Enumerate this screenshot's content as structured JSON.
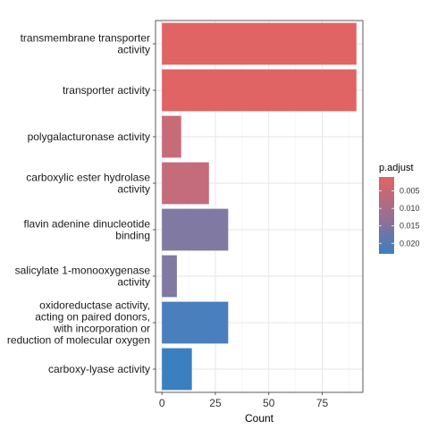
{
  "chart_data": {
    "type": "bar",
    "orientation": "horizontal",
    "xlabel": "Count",
    "ylabel": "",
    "xlim": [
      -3,
      94
    ],
    "xticks": [
      0,
      25,
      50,
      75
    ],
    "grid": true,
    "legend_position": "right",
    "legend": {
      "title": "p.adjust",
      "ticks": [
        "0.005",
        "0.010",
        "0.015",
        "0.020"
      ],
      "tick_values": [
        0.005,
        0.01,
        0.015,
        0.02
      ],
      "range": [
        0.001,
        0.023
      ],
      "color_low": "#e06464",
      "color_high": "#3a80c0"
    },
    "bars": [
      {
        "label": [
          "transmembrane transporter",
          "activity"
        ],
        "count": 91,
        "p_adjust": 0.001,
        "color": "#e06464"
      },
      {
        "label": [
          "transporter activity"
        ],
        "count": 91,
        "p_adjust": 0.001,
        "color": "#e06464"
      },
      {
        "label": [
          "polygalacturonase activity"
        ],
        "count": 9,
        "p_adjust": 0.006,
        "color": "#c86b79"
      },
      {
        "label": [
          "carboxylic ester hydrolase",
          "activity"
        ],
        "count": 22,
        "p_adjust": 0.007,
        "color": "#c46c7b"
      },
      {
        "label": [
          "flavin adenine dinucleotide",
          "binding"
        ],
        "count": 31,
        "p_adjust": 0.015,
        "color": "#8079a2"
      },
      {
        "label": [
          "salicylate 1-monooxygenase",
          "activity"
        ],
        "count": 7,
        "p_adjust": 0.016,
        "color": "#8079a2"
      },
      {
        "label": [
          "oxidoreductase activity,",
          "acting on paired donors,",
          "with incorporation or",
          "reduction of molecular oxygen"
        ],
        "count": 31,
        "p_adjust": 0.022,
        "color": "#4a7fbd"
      },
      {
        "label": [
          "carboxy-lyase activity"
        ],
        "count": 14,
        "p_adjust": 0.023,
        "color": "#3a80c0"
      }
    ]
  }
}
